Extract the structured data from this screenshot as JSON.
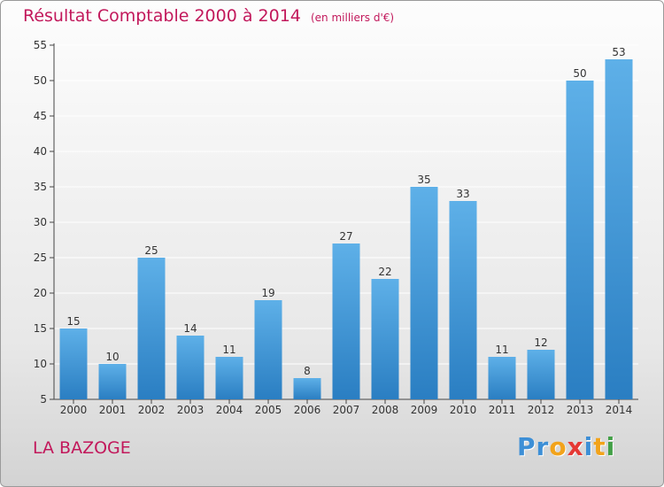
{
  "colors": {
    "accent": "#c2185b",
    "bar_light": "#5eb0e8",
    "bar_dark": "#2a7ec2",
    "axis": "#444444",
    "grid": "#ffffff"
  },
  "chart_data": {
    "type": "bar",
    "title": "Résultat Comptable 2000 à 2014",
    "unit_note": "(en milliers d'€)",
    "categories": [
      "2000",
      "2001",
      "2002",
      "2003",
      "2004",
      "2005",
      "2006",
      "2007",
      "2008",
      "2009",
      "2010",
      "2011",
      "2012",
      "2013",
      "2014"
    ],
    "values": [
      15,
      10,
      25,
      14,
      11,
      19,
      8,
      27,
      22,
      35,
      33,
      11,
      12,
      50,
      53
    ],
    "ylim": [
      5,
      55
    ],
    "yticks": [
      5,
      10,
      15,
      20,
      25,
      30,
      35,
      40,
      45,
      50,
      55
    ],
    "xlabel": "",
    "ylabel": "",
    "grid": true,
    "show_data_labels": true
  },
  "footer": {
    "commune": "LA BAZOGE",
    "brand_letters": [
      {
        "ch": "P",
        "color": "#3d8fd6"
      },
      {
        "ch": "r",
        "color": "#3d8fd6"
      },
      {
        "ch": "o",
        "color": "#f2a31b"
      },
      {
        "ch": "x",
        "color": "#e53935"
      },
      {
        "ch": "i",
        "color": "#3d8fd6"
      },
      {
        "ch": "t",
        "color": "#f2a31b"
      },
      {
        "ch": "i",
        "color": "#43a047"
      }
    ]
  }
}
